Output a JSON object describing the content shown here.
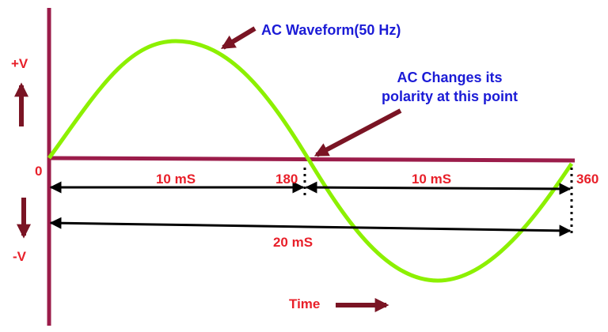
{
  "labels": {
    "plus_v": "+V",
    "minus_v": "-V",
    "zero": "0",
    "deg_180": "180",
    "deg_360": "360",
    "half_period_1": "10 mS",
    "half_period_2": "10 mS",
    "full_period": "20 mS",
    "time": "Time"
  },
  "annotations": {
    "waveform": "AC Waveform(50 Hz)",
    "polarity_line1": "AC Changes its",
    "polarity_line2": "polarity at this point"
  }
}
